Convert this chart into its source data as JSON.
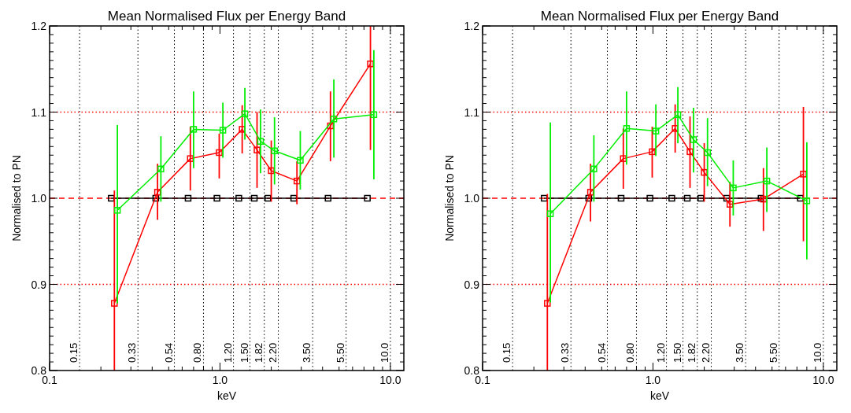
{
  "chart_data": [
    {
      "type": "line",
      "title": "Mean Normalised Flux per Energy Band",
      "xlabel": "keV",
      "ylabel": "Normalised to PN",
      "log": "x",
      "marker": "square",
      "line_style": "solid",
      "xlim": [
        0.1,
        12
      ],
      "ylim": [
        0.8,
        1.2
      ],
      "xticks": [
        {
          "value": 0.1,
          "label": "0.1"
        },
        {
          "value": 0.2,
          "label": null
        },
        {
          "value": 0.3,
          "label": null
        },
        {
          "value": 0.4,
          "label": null
        },
        {
          "value": 0.5,
          "label": null
        },
        {
          "value": 0.6,
          "label": null
        },
        {
          "value": 0.7,
          "label": null
        },
        {
          "value": 0.8,
          "label": null
        },
        {
          "value": 0.9,
          "label": null
        },
        {
          "value": 1,
          "label": "1.0"
        },
        {
          "value": 2,
          "label": null
        },
        {
          "value": 3,
          "label": null
        },
        {
          "value": 4,
          "label": null
        },
        {
          "value": 5,
          "label": null
        },
        {
          "value": 6,
          "label": null
        },
        {
          "value": 7,
          "label": null
        },
        {
          "value": 8,
          "label": null
        },
        {
          "value": 9,
          "label": null
        },
        {
          "value": 10,
          "label": "10.0"
        }
      ],
      "yticks": [
        0.8,
        {
          "value": 0.81,
          "label": null
        },
        {
          "value": 0.82,
          "label": null
        },
        {
          "value": 0.83,
          "label": null
        },
        {
          "value": 0.84,
          "label": null
        },
        {
          "value": 0.85,
          "label": null
        },
        {
          "value": 0.86,
          "label": null
        },
        {
          "value": 0.87,
          "label": null
        },
        {
          "value": 0.88,
          "label": null
        },
        {
          "value": 0.89,
          "label": null
        },
        0.9,
        {
          "value": 0.91,
          "label": null
        },
        {
          "value": 0.92,
          "label": null
        },
        {
          "value": 0.93,
          "label": null
        },
        {
          "value": 0.94,
          "label": null
        },
        {
          "value": 0.95,
          "label": null
        },
        {
          "value": 0.96,
          "label": null
        },
        {
          "value": 0.97,
          "label": null
        },
        {
          "value": 0.98,
          "label": null
        },
        {
          "value": 0.99,
          "label": null
        },
        {
          "value": 1,
          "label": "1.0"
        },
        {
          "value": 1.01,
          "label": null
        },
        {
          "value": 1.02,
          "label": null
        },
        {
          "value": 1.03,
          "label": null
        },
        {
          "value": 1.04,
          "label": null
        },
        {
          "value": 1.05,
          "label": null
        },
        {
          "value": 1.06,
          "label": null
        },
        {
          "value": 1.07,
          "label": null
        },
        {
          "value": 1.08,
          "label": null
        },
        {
          "value": 1.09,
          "label": null
        },
        1.1,
        {
          "value": 1.11,
          "label": null
        },
        {
          "value": 1.12,
          "label": null
        },
        {
          "value": 1.13,
          "label": null
        },
        {
          "value": 1.14,
          "label": null
        },
        {
          "value": 1.15,
          "label": null
        },
        {
          "value": 1.16,
          "label": null
        },
        {
          "value": 1.17,
          "label": null
        },
        {
          "value": 1.18,
          "label": null
        },
        {
          "value": 1.19,
          "label": null
        },
        1.2
      ],
      "ref_lines": [
        {
          "axis": "y",
          "value": 1.0,
          "color": "#ff0000",
          "line_style": "dashed"
        },
        {
          "axis": "y",
          "value": 1.1,
          "color": "#ff0000",
          "line_style": "dotted"
        },
        {
          "axis": "y",
          "value": 0.9,
          "color": "#ff0000",
          "line_style": "dotted"
        },
        {
          "axis": "x",
          "value": 0.15,
          "label": "0.15",
          "color": "#000000",
          "line_style": "dotted"
        },
        {
          "axis": "x",
          "value": 0.33,
          "label": "0.33",
          "color": "#000000",
          "line_style": "dotted"
        },
        {
          "axis": "x",
          "value": 0.54,
          "label": "0.54",
          "color": "#000000",
          "line_style": "dotted"
        },
        {
          "axis": "x",
          "value": 0.8,
          "label": "0.80",
          "color": "#000000",
          "line_style": "dotted"
        },
        {
          "axis": "x",
          "value": 1.2,
          "label": "1.20",
          "color": "#000000",
          "line_style": "dotted"
        },
        {
          "axis": "x",
          "value": 1.5,
          "label": "1.50",
          "color": "#000000",
          "line_style": "dotted"
        },
        {
          "axis": "x",
          "value": 1.82,
          "label": "1.82",
          "color": "#000000",
          "line_style": "dotted"
        },
        {
          "axis": "x",
          "value": 2.2,
          "label": "2.20",
          "color": "#000000",
          "line_style": "dotted"
        },
        {
          "axis": "x",
          "value": 3.5,
          "label": "3.50",
          "color": "#000000",
          "line_style": "dotted"
        },
        {
          "axis": "x",
          "value": 5.5,
          "label": "5.50",
          "color": "#000000",
          "line_style": "dotted"
        },
        {
          "axis": "x",
          "value": 10.0,
          "label": "10.0",
          "color": "#000000",
          "line_style": "dotted"
        }
      ],
      "series": [
        {
          "color": "#000000",
          "x": [
            0.23,
            0.42,
            0.65,
            0.96,
            1.29,
            1.59,
            1.91,
            2.71,
            4.31,
            7.33
          ],
          "values": [
            1.0,
            1.0,
            1.0,
            1.0,
            1.0,
            1.0,
            1.0,
            1.0,
            1.0,
            1.0
          ]
        },
        {
          "color": "#ff0000",
          "x": [
            0.24,
            0.43,
            0.67,
            0.99,
            1.35,
            1.65,
            2.0,
            2.83,
            4.45,
            7.64
          ],
          "values": [
            0.878,
            1.007,
            1.046,
            1.053,
            1.08,
            1.056,
            1.032,
            1.02,
            1.084,
            1.156
          ],
          "errors": [
            [
              0.8,
              1.009
            ],
            [
              0.975,
              1.04
            ],
            [
              1.009,
              1.083
            ],
            [
              1.023,
              1.075
            ],
            [
              1.052,
              1.108
            ],
            [
              1.012,
              1.1
            ],
            [
              0.996,
              1.067
            ],
            [
              0.993,
              1.043
            ],
            [
              1.043,
              1.124
            ],
            [
              1.056,
              1.2
            ]
          ]
        },
        {
          "color": "#00ee00",
          "x": [
            0.25,
            0.45,
            0.7,
            1.04,
            1.4,
            1.73,
            2.09,
            2.96,
            4.66,
            8.0
          ],
          "values": [
            0.986,
            1.034,
            1.08,
            1.079,
            1.098,
            1.066,
            1.055,
            1.044,
            1.092,
            1.097
          ],
          "errors": [
            [
              0.878,
              1.085
            ],
            [
              0.996,
              1.072
            ],
            [
              1.035,
              1.124
            ],
            [
              1.047,
              1.111
            ],
            [
              1.068,
              1.128
            ],
            [
              1.029,
              1.103
            ],
            [
              1.016,
              1.094
            ],
            [
              1.01,
              1.078
            ],
            [
              1.047,
              1.138
            ],
            [
              1.022,
              1.172
            ]
          ]
        }
      ]
    },
    {
      "type": "line",
      "title": "Mean Normalised Flux per Energy Band",
      "xlabel": "keV",
      "ylabel": "Normalised to PN",
      "log": "x",
      "marker": "square",
      "line_style": "solid",
      "xlim": [
        0.1,
        12
      ],
      "ylim": [
        0.8,
        1.2
      ],
      "xticks": [
        {
          "value": 0.1,
          "label": "0.1"
        },
        {
          "value": 0.2,
          "label": null
        },
        {
          "value": 0.3,
          "label": null
        },
        {
          "value": 0.4,
          "label": null
        },
        {
          "value": 0.5,
          "label": null
        },
        {
          "value": 0.6,
          "label": null
        },
        {
          "value": 0.7,
          "label": null
        },
        {
          "value": 0.8,
          "label": null
        },
        {
          "value": 0.9,
          "label": null
        },
        {
          "value": 1,
          "label": "1.0"
        },
        {
          "value": 2,
          "label": null
        },
        {
          "value": 3,
          "label": null
        },
        {
          "value": 4,
          "label": null
        },
        {
          "value": 5,
          "label": null
        },
        {
          "value": 6,
          "label": null
        },
        {
          "value": 7,
          "label": null
        },
        {
          "value": 8,
          "label": null
        },
        {
          "value": 9,
          "label": null
        },
        {
          "value": 10,
          "label": "10.0"
        }
      ],
      "yticks": [
        0.8,
        {
          "value": 0.81,
          "label": null
        },
        {
          "value": 0.82,
          "label": null
        },
        {
          "value": 0.83,
          "label": null
        },
        {
          "value": 0.84,
          "label": null
        },
        {
          "value": 0.85,
          "label": null
        },
        {
          "value": 0.86,
          "label": null
        },
        {
          "value": 0.87,
          "label": null
        },
        {
          "value": 0.88,
          "label": null
        },
        {
          "value": 0.89,
          "label": null
        },
        0.9,
        {
          "value": 0.91,
          "label": null
        },
        {
          "value": 0.92,
          "label": null
        },
        {
          "value": 0.93,
          "label": null
        },
        {
          "value": 0.94,
          "label": null
        },
        {
          "value": 0.95,
          "label": null
        },
        {
          "value": 0.96,
          "label": null
        },
        {
          "value": 0.97,
          "label": null
        },
        {
          "value": 0.98,
          "label": null
        },
        {
          "value": 0.99,
          "label": null
        },
        {
          "value": 1,
          "label": "1.0"
        },
        {
          "value": 1.01,
          "label": null
        },
        {
          "value": 1.02,
          "label": null
        },
        {
          "value": 1.03,
          "label": null
        },
        {
          "value": 1.04,
          "label": null
        },
        {
          "value": 1.05,
          "label": null
        },
        {
          "value": 1.06,
          "label": null
        },
        {
          "value": 1.07,
          "label": null
        },
        {
          "value": 1.08,
          "label": null
        },
        {
          "value": 1.09,
          "label": null
        },
        1.1,
        {
          "value": 1.11,
          "label": null
        },
        {
          "value": 1.12,
          "label": null
        },
        {
          "value": 1.13,
          "label": null
        },
        {
          "value": 1.14,
          "label": null
        },
        {
          "value": 1.15,
          "label": null
        },
        {
          "value": 1.16,
          "label": null
        },
        {
          "value": 1.17,
          "label": null
        },
        {
          "value": 1.18,
          "label": null
        },
        {
          "value": 1.19,
          "label": null
        },
        1.2
      ],
      "ref_lines": [
        {
          "axis": "y",
          "value": 1.0,
          "color": "#ff0000",
          "line_style": "dashed"
        },
        {
          "axis": "y",
          "value": 1.1,
          "color": "#ff0000",
          "line_style": "dotted"
        },
        {
          "axis": "y",
          "value": 0.9,
          "color": "#ff0000",
          "line_style": "dotted"
        },
        {
          "axis": "x",
          "value": 0.15,
          "label": "0.15",
          "color": "#000000",
          "line_style": "dotted"
        },
        {
          "axis": "x",
          "value": 0.33,
          "label": "0.33",
          "color": "#000000",
          "line_style": "dotted"
        },
        {
          "axis": "x",
          "value": 0.54,
          "label": "0.54",
          "color": "#000000",
          "line_style": "dotted"
        },
        {
          "axis": "x",
          "value": 0.8,
          "label": "0.80",
          "color": "#000000",
          "line_style": "dotted"
        },
        {
          "axis": "x",
          "value": 1.2,
          "label": "1.20",
          "color": "#000000",
          "line_style": "dotted"
        },
        {
          "axis": "x",
          "value": 1.5,
          "label": "1.50",
          "color": "#000000",
          "line_style": "dotted"
        },
        {
          "axis": "x",
          "value": 1.82,
          "label": "1.82",
          "color": "#000000",
          "line_style": "dotted"
        },
        {
          "axis": "x",
          "value": 2.2,
          "label": "2.20",
          "color": "#000000",
          "line_style": "dotted"
        },
        {
          "axis": "x",
          "value": 3.5,
          "label": "3.50",
          "color": "#000000",
          "line_style": "dotted"
        },
        {
          "axis": "x",
          "value": 5.5,
          "label": "5.50",
          "color": "#000000",
          "line_style": "dotted"
        },
        {
          "axis": "x",
          "value": 10.0,
          "label": "10.0",
          "color": "#000000",
          "line_style": "dotted"
        }
      ],
      "series": [
        {
          "color": "#000000",
          "x": [
            0.23,
            0.42,
            0.65,
            0.96,
            1.29,
            1.59,
            1.91,
            2.71,
            4.31,
            7.33
          ],
          "values": [
            1.0,
            1.0,
            1.0,
            1.0,
            1.0,
            1.0,
            1.0,
            1.0,
            1.0,
            1.0
          ]
        },
        {
          "color": "#ff0000",
          "x": [
            0.24,
            0.43,
            0.67,
            0.99,
            1.35,
            1.65,
            2.0,
            2.83,
            4.45,
            7.64
          ],
          "values": [
            0.878,
            1.007,
            1.046,
            1.054,
            1.081,
            1.054,
            1.03,
            0.993,
            0.999,
            1.028
          ],
          "errors": [
            [
              0.8,
              1.005
            ],
            [
              0.973,
              1.04
            ],
            [
              1.011,
              1.081
            ],
            [
              1.024,
              1.083
            ],
            [
              1.053,
              1.109
            ],
            [
              1.012,
              1.095
            ],
            [
              0.996,
              1.064
            ],
            [
              0.967,
              1.019
            ],
            [
              0.962,
              1.035
            ],
            [
              0.95,
              1.106
            ]
          ]
        },
        {
          "color": "#00ee00",
          "x": [
            0.25,
            0.45,
            0.7,
            1.04,
            1.4,
            1.73,
            2.09,
            2.96,
            4.66,
            8.0
          ],
          "values": [
            0.982,
            1.034,
            1.081,
            1.078,
            1.097,
            1.068,
            1.053,
            1.012,
            1.02,
            0.997
          ],
          "errors": [
            [
              0.879,
              1.088
            ],
            [
              0.996,
              1.073
            ],
            [
              1.039,
              1.124
            ],
            [
              1.049,
              1.109
            ],
            [
              1.064,
              1.129
            ],
            [
              1.03,
              1.105
            ],
            [
              1.014,
              1.093
            ],
            [
              0.98,
              1.044
            ],
            [
              0.984,
              1.059
            ],
            [
              0.929,
              1.065
            ]
          ]
        }
      ]
    }
  ]
}
